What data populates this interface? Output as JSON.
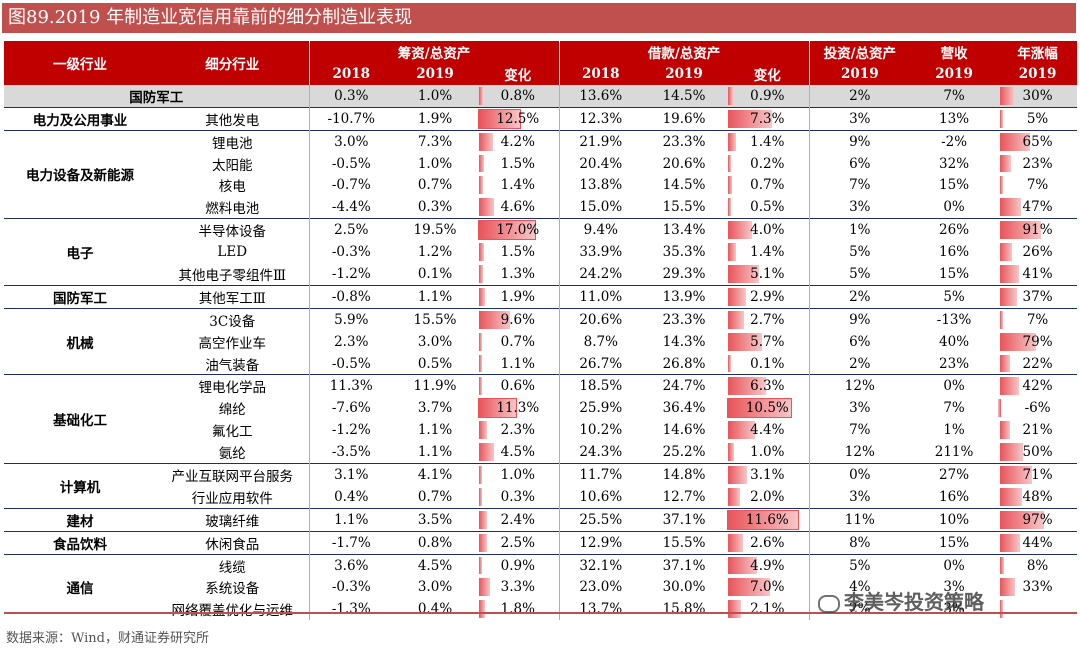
{
  "title": "图89.2019 年制造业宽信用靠前的细分制造业表现",
  "header": {
    "col1": "一级行业",
    "col2": "细分行业",
    "group_finance": "筹资/总资产",
    "group_borrow": "借款/总资产",
    "col_invest": "投资/总资产",
    "col_revenue": "营收",
    "col_price": "年涨幅",
    "y2018": "2018",
    "y2019": "2019",
    "change": "变化"
  },
  "rows": [
    {
      "group": "国防军工",
      "sub": "",
      "f18": "0.3%",
      "f19": "1.0%",
      "fchg": "0.8%",
      "fbar": 0.064,
      "b18": "13.6%",
      "b19": "14.5%",
      "bchg": "0.9%",
      "bbar": 0.078,
      "inv": "2%",
      "rev": "7%",
      "price": "30%",
      "pbar": 0.31,
      "defence": true
    },
    {
      "group": "电力及公用事业",
      "sub": "其他发电",
      "f18": "-10.7%",
      "f19": "1.9%",
      "fchg": "12.5%",
      "fbar": 0.74,
      "b18": "12.3%",
      "b19": "19.6%",
      "bchg": "7.3%",
      "bbar": 0.63,
      "inv": "3%",
      "rev": "13%",
      "price": "5%",
      "pbar": 0.05,
      "box": "f"
    },
    {
      "group": "",
      "sub": "锂电池",
      "f18": "3.0%",
      "f19": "7.3%",
      "fchg": "4.2%",
      "fbar": 0.25,
      "b18": "21.9%",
      "b19": "23.3%",
      "bchg": "1.4%",
      "bbar": 0.12,
      "inv": "9%",
      "rev": "-2%",
      "price": "65%",
      "pbar": 0.67
    },
    {
      "group": "电力设备及新能源",
      "sub": "太阳能",
      "f18": "-0.5%",
      "f19": "1.0%",
      "fchg": "1.5%",
      "fbar": 0.09,
      "b18": "20.4%",
      "b19": "20.6%",
      "bchg": "0.2%",
      "bbar": 0.02,
      "inv": "6%",
      "rev": "32%",
      "price": "23%",
      "pbar": 0.24
    },
    {
      "group": "",
      "sub": "核电",
      "f18": "-0.7%",
      "f19": "0.7%",
      "fchg": "1.4%",
      "fbar": 0.08,
      "b18": "13.8%",
      "b19": "14.5%",
      "bchg": "0.7%",
      "bbar": 0.06,
      "inv": "7%",
      "rev": "15%",
      "price": "7%",
      "pbar": 0.07
    },
    {
      "group": "",
      "sub": "燃料电池",
      "f18": "-4.4%",
      "f19": "0.3%",
      "fchg": "4.6%",
      "fbar": 0.27,
      "b18": "15.0%",
      "b19": "15.5%",
      "bchg": "0.5%",
      "bbar": 0.04,
      "inv": "3%",
      "rev": "0%",
      "price": "47%",
      "pbar": 0.48
    },
    {
      "group": "",
      "sub": "半导体设备",
      "f18": "2.5%",
      "f19": "19.5%",
      "fchg": "17.0%",
      "fbar": 1.0,
      "b18": "9.4%",
      "b19": "13.4%",
      "bchg": "4.0%",
      "bbar": 0.34,
      "inv": "1%",
      "rev": "26%",
      "price": "91%",
      "pbar": 0.94,
      "box": "f"
    },
    {
      "group": "电子",
      "sub": "LED",
      "f18": "-0.3%",
      "f19": "1.2%",
      "fchg": "1.5%",
      "fbar": 0.09,
      "b18": "33.9%",
      "b19": "35.3%",
      "bchg": "1.4%",
      "bbar": 0.12,
      "inv": "5%",
      "rev": "16%",
      "price": "26%",
      "pbar": 0.27
    },
    {
      "group": "",
      "sub": "其他电子零组件Ⅲ",
      "f18": "-1.2%",
      "f19": "0.1%",
      "fchg": "1.3%",
      "fbar": 0.08,
      "b18": "24.2%",
      "b19": "29.3%",
      "bchg": "5.1%",
      "bbar": 0.44,
      "inv": "5%",
      "rev": "15%",
      "price": "41%",
      "pbar": 0.42
    },
    {
      "group": "国防军工",
      "sub": "其他军工Ⅲ",
      "f18": "-0.8%",
      "f19": "1.1%",
      "fchg": "1.9%",
      "fbar": 0.11,
      "b18": "11.0%",
      "b19": "13.9%",
      "bchg": "2.9%",
      "bbar": 0.25,
      "inv": "2%",
      "rev": "5%",
      "price": "37%",
      "pbar": 0.38
    },
    {
      "group": "",
      "sub": "3C设备",
      "f18": "5.9%",
      "f19": "15.5%",
      "fchg": "9.6%",
      "fbar": 0.56,
      "b18": "20.6%",
      "b19": "23.3%",
      "bchg": "2.7%",
      "bbar": 0.23,
      "inv": "9%",
      "rev": "-13%",
      "price": "7%",
      "pbar": 0.07
    },
    {
      "group": "机械",
      "sub": "高空作业车",
      "f18": "2.3%",
      "f19": "3.0%",
      "fchg": "0.7%",
      "fbar": 0.04,
      "b18": "8.7%",
      "b19": "14.3%",
      "bchg": "5.7%",
      "bbar": 0.49,
      "inv": "6%",
      "rev": "40%",
      "price": "79%",
      "pbar": 0.81
    },
    {
      "group": "",
      "sub": "油气装备",
      "f18": "-0.5%",
      "f19": "0.5%",
      "fchg": "1.1%",
      "fbar": 0.06,
      "b18": "26.7%",
      "b19": "26.8%",
      "bchg": "0.1%",
      "bbar": 0.01,
      "inv": "2%",
      "rev": "23%",
      "price": "22%",
      "pbar": 0.23
    },
    {
      "group": "",
      "sub": "锂电化学品",
      "f18": "11.3%",
      "f19": "11.9%",
      "fchg": "0.6%",
      "fbar": 0.04,
      "b18": "18.5%",
      "b19": "24.7%",
      "bchg": "6.3%",
      "bbar": 0.54,
      "inv": "12%",
      "rev": "0%",
      "price": "42%",
      "pbar": 0.43
    },
    {
      "group": "",
      "sub": "绵纶",
      "f18": "-7.6%",
      "f19": "3.7%",
      "fchg": "11.3%",
      "fbar": 0.66,
      "b18": "25.9%",
      "b19": "36.4%",
      "bchg": "10.5%",
      "bbar": 0.9,
      "inv": "3%",
      "rev": "7%",
      "price": "-6%",
      "pbar": -0.06,
      "box": "fb"
    },
    {
      "group": "基础化工",
      "sub": "氟化工",
      "f18": "-1.2%",
      "f19": "1.1%",
      "fchg": "2.3%",
      "fbar": 0.14,
      "b18": "10.2%",
      "b19": "14.6%",
      "bchg": "4.4%",
      "bbar": 0.38,
      "inv": "7%",
      "rev": "1%",
      "price": "21%",
      "pbar": 0.22
    },
    {
      "group": "",
      "sub": "氨纶",
      "f18": "-3.5%",
      "f19": "1.1%",
      "fchg": "4.5%",
      "fbar": 0.26,
      "b18": "24.3%",
      "b19": "25.2%",
      "bchg": "1.0%",
      "bbar": 0.09,
      "inv": "12%",
      "rev": "211%",
      "price": "50%",
      "pbar": 0.52
    },
    {
      "group": "计算机",
      "sub": "产业互联网平台服务",
      "f18": "3.1%",
      "f19": "4.1%",
      "fchg": "1.0%",
      "fbar": 0.06,
      "b18": "11.7%",
      "b19": "14.8%",
      "bchg": "3.1%",
      "bbar": 0.27,
      "inv": "0%",
      "rev": "27%",
      "price": "71%",
      "pbar": 0.73
    },
    {
      "group": "",
      "sub": "行业应用软件",
      "f18": "0.4%",
      "f19": "0.7%",
      "fchg": "0.3%",
      "fbar": 0.02,
      "b18": "10.6%",
      "b19": "12.7%",
      "bchg": "2.0%",
      "bbar": 0.17,
      "inv": "3%",
      "rev": "16%",
      "price": "48%",
      "pbar": 0.49
    },
    {
      "group": "建材",
      "sub": "玻璃纤维",
      "f18": "1.1%",
      "f19": "3.5%",
      "fchg": "2.4%",
      "fbar": 0.14,
      "b18": "25.5%",
      "b19": "37.1%",
      "bchg": "11.6%",
      "bbar": 1.0,
      "inv": "11%",
      "rev": "10%",
      "price": "97%",
      "pbar": 1.0,
      "box": "b"
    },
    {
      "group": "食品饮料",
      "sub": "休闲食品",
      "f18": "-1.7%",
      "f19": "0.8%",
      "fchg": "2.5%",
      "fbar": 0.15,
      "b18": "12.9%",
      "b19": "15.5%",
      "bchg": "2.6%",
      "bbar": 0.22,
      "inv": "8%",
      "rev": "15%",
      "price": "44%",
      "pbar": 0.45
    },
    {
      "group": "",
      "sub": "线缆",
      "f18": "3.6%",
      "f19": "4.5%",
      "fchg": "0.9%",
      "fbar": 0.05,
      "b18": "32.1%",
      "b19": "37.1%",
      "bchg": "4.9%",
      "bbar": 0.42,
      "inv": "5%",
      "rev": "0%",
      "price": "8%",
      "pbar": 0.08
    },
    {
      "group": "通信",
      "sub": "系统设备",
      "f18": "-0.3%",
      "f19": "3.0%",
      "fchg": "3.3%",
      "fbar": 0.19,
      "b18": "23.0%",
      "b19": "30.0%",
      "bchg": "7.0%",
      "bbar": 0.6,
      "inv": "4%",
      "rev": "3%",
      "price": "33%",
      "pbar": 0.34
    },
    {
      "group": "",
      "sub": "网络覆盖优化与运维",
      "f18": "-1.3%",
      "f19": "0.4%",
      "fchg": "1.8%",
      "fbar": 0.1,
      "b18": "13.7%",
      "b19": "15.8%",
      "bchg": "2.1%",
      "bbar": 0.18,
      "inv": "2%",
      "rev": "3%",
      "price": "",
      "pbar": 0
    }
  ],
  "source": "数据来源：Wind，财通证券研究所",
  "watermark": "李美岑投资策略",
  "colors": {
    "header": "#c00000",
    "title_bar": "#c0504d",
    "bar": "#e8545a",
    "group_row": "#d9d9d9"
  }
}
